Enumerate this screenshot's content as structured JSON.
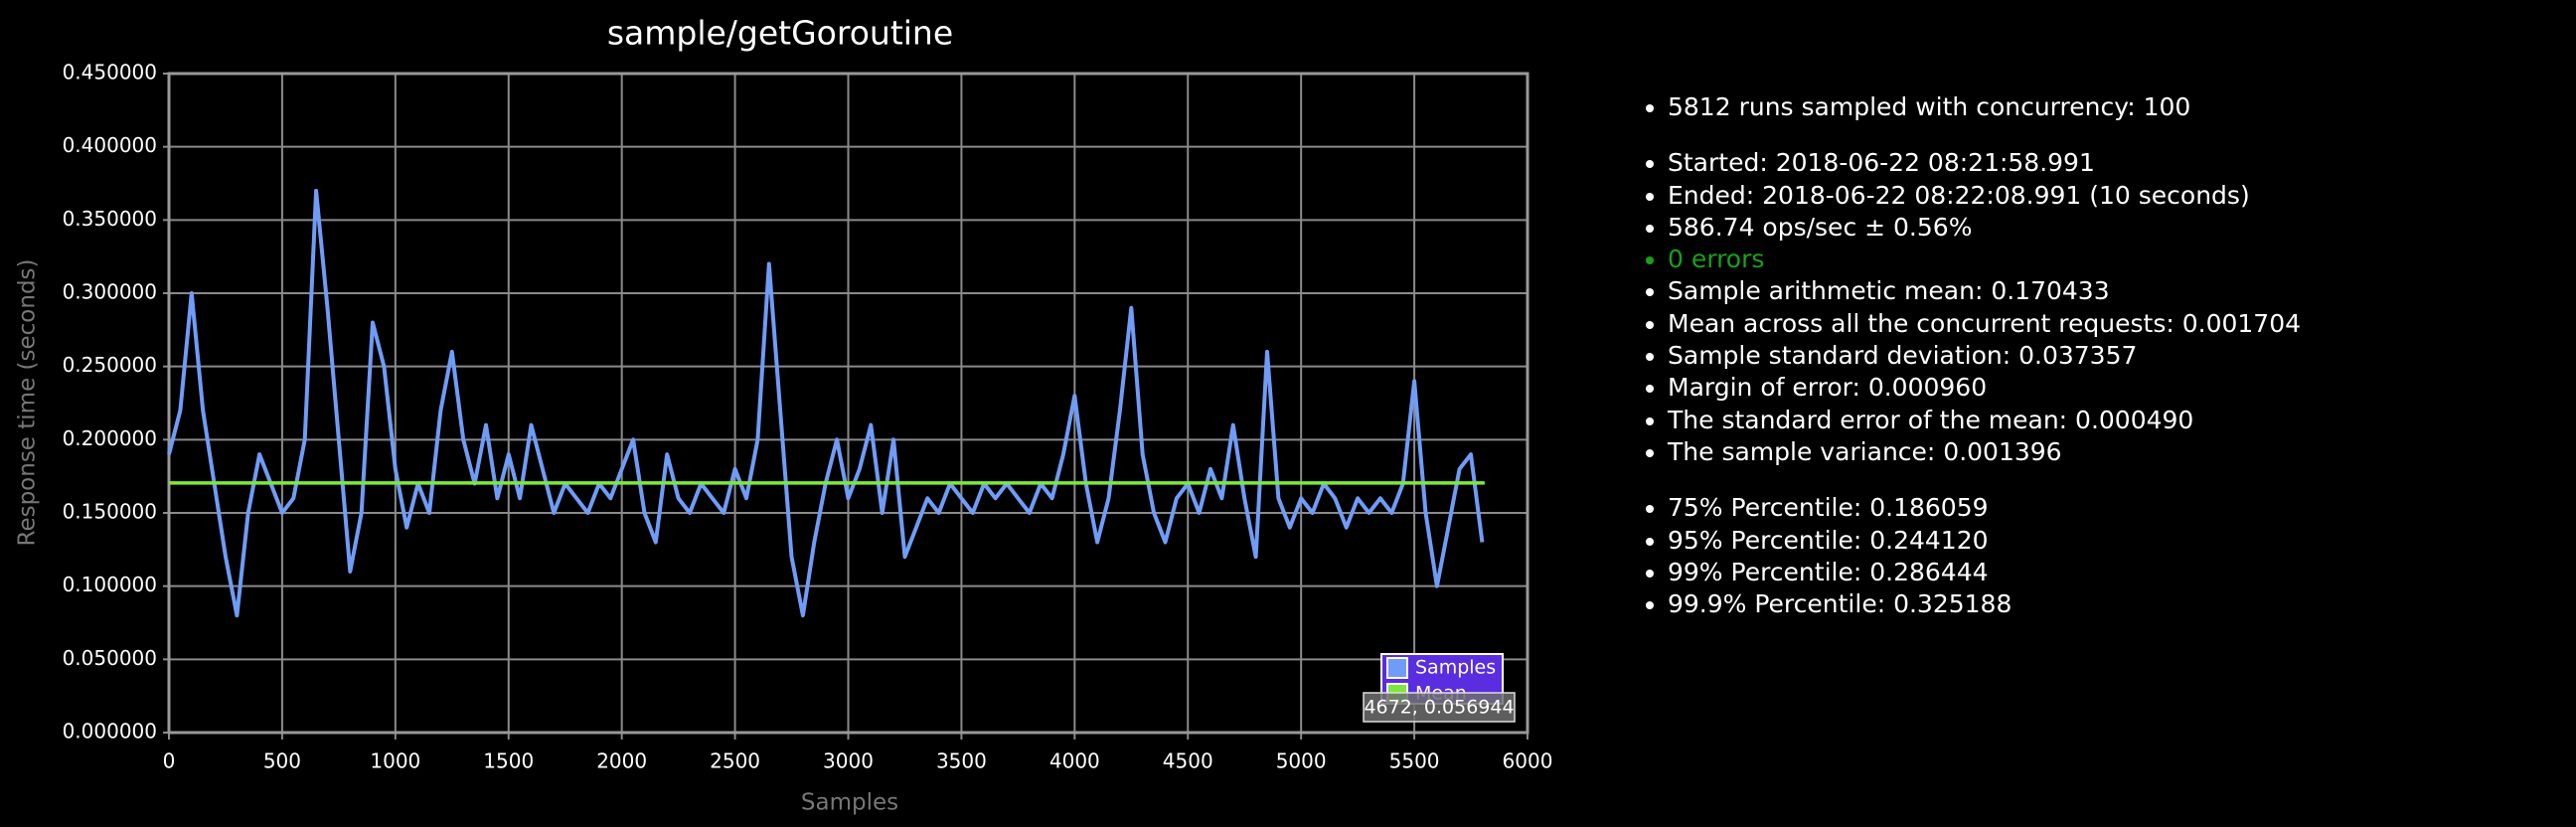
{
  "chart_data": {
    "type": "line",
    "title": "sample/getGoroutine",
    "x_label": "Samples",
    "y_label": "Response time (seconds)",
    "xlim": [
      0,
      6000
    ],
    "xticks": [
      0,
      500,
      1000,
      1500,
      2000,
      2500,
      3000,
      3500,
      4000,
      4500,
      5000,
      5500,
      6000
    ],
    "ylim": [
      0,
      0.45
    ],
    "yticks": [
      {
        "value": 0,
        "label": "0.000000"
      },
      {
        "value": 0.05,
        "label": "0.050000"
      },
      {
        "value": 0.1,
        "label": "0.100000"
      },
      {
        "value": 0.15,
        "label": "0.150000"
      },
      {
        "value": 0.2,
        "label": "0.200000"
      },
      {
        "value": 0.25,
        "label": "0.250000"
      },
      {
        "value": 0.3,
        "label": "0.300000"
      },
      {
        "value": 0.35,
        "label": "0.350000"
      },
      {
        "value": 0.4,
        "label": "0.400000"
      },
      {
        "value": 0.45,
        "label": "0.450000"
      }
    ],
    "grid": true,
    "legend": "lower right",
    "tooltip": "4672, 0.056944",
    "series": [
      {
        "name": "Samples",
        "color": "#6f9cf7",
        "x": [
          0,
          50,
          100,
          150,
          200,
          250,
          300,
          350,
          400,
          450,
          500,
          550,
          600,
          650,
          700,
          750,
          800,
          850,
          900,
          950,
          1000,
          1050,
          1100,
          1150,
          1200,
          1250,
          1300,
          1350,
          1400,
          1450,
          1500,
          1550,
          1600,
          1650,
          1700,
          1750,
          1800,
          1850,
          1900,
          1950,
          2000,
          2050,
          2100,
          2150,
          2200,
          2250,
          2300,
          2350,
          2400,
          2450,
          2500,
          2550,
          2600,
          2650,
          2700,
          2750,
          2800,
          2850,
          2900,
          2950,
          3000,
          3050,
          3100,
          3150,
          3200,
          3250,
          3300,
          3350,
          3400,
          3450,
          3500,
          3550,
          3600,
          3650,
          3700,
          3750,
          3800,
          3850,
          3900,
          3950,
          4000,
          4050,
          4100,
          4150,
          4200,
          4250,
          4300,
          4350,
          4400,
          4450,
          4500,
          4550,
          4600,
          4650,
          4700,
          4750,
          4800,
          4850,
          4900,
          4950,
          5000,
          5050,
          5100,
          5150,
          5200,
          5250,
          5300,
          5350,
          5400,
          5450,
          5500,
          5550,
          5600,
          5650,
          5700,
          5750,
          5800
        ],
        "values": [
          0.19,
          0.22,
          0.3,
          0.22,
          0.17,
          0.12,
          0.08,
          0.15,
          0.19,
          0.17,
          0.15,
          0.16,
          0.2,
          0.37,
          0.29,
          0.2,
          0.11,
          0.15,
          0.28,
          0.25,
          0.18,
          0.14,
          0.17,
          0.15,
          0.22,
          0.26,
          0.2,
          0.17,
          0.21,
          0.16,
          0.19,
          0.16,
          0.21,
          0.18,
          0.15,
          0.17,
          0.16,
          0.15,
          0.17,
          0.16,
          0.18,
          0.2,
          0.15,
          0.13,
          0.19,
          0.16,
          0.15,
          0.17,
          0.16,
          0.15,
          0.18,
          0.16,
          0.2,
          0.32,
          0.22,
          0.12,
          0.08,
          0.13,
          0.17,
          0.2,
          0.16,
          0.18,
          0.21,
          0.15,
          0.2,
          0.12,
          0.14,
          0.16,
          0.15,
          0.17,
          0.16,
          0.15,
          0.17,
          0.16,
          0.17,
          0.16,
          0.15,
          0.17,
          0.16,
          0.19,
          0.23,
          0.17,
          0.13,
          0.16,
          0.22,
          0.29,
          0.19,
          0.15,
          0.13,
          0.16,
          0.17,
          0.15,
          0.18,
          0.16,
          0.21,
          0.16,
          0.12,
          0.26,
          0.16,
          0.14,
          0.16,
          0.15,
          0.17,
          0.16,
          0.14,
          0.16,
          0.15,
          0.16,
          0.15,
          0.17,
          0.24,
          0.15,
          0.1,
          0.14,
          0.18,
          0.19,
          0.13
        ]
      },
      {
        "name": "Mean",
        "color": "#7de83a",
        "x": [
          0,
          5811
        ],
        "values": [
          0.170433,
          0.170433
        ]
      }
    ]
  },
  "summary": [
    [
      {
        "text": "5812 runs sampled with concurrency: 100"
      }
    ],
    [
      {
        "text": "Started: 2018-06-22 08:21:58.991"
      },
      {
        "text": "Ended: 2018-06-22 08:22:08.991 (10 seconds)"
      },
      {
        "text": "586.74 ops/sec ± 0.56%"
      },
      {
        "text": "0 errors",
        "color": "#1aa01a"
      },
      {
        "text": "Sample arithmetic mean: 0.170433"
      },
      {
        "text": "Mean across all the concurrent requests: 0.001704"
      },
      {
        "text": "Sample standard deviation: 0.037357"
      },
      {
        "text": "Margin of error: 0.000960"
      },
      {
        "text": "The standard error of the mean: 0.000490"
      },
      {
        "text": "The sample variance: 0.001396"
      }
    ],
    [
      {
        "text": "75% Percentile: 0.186059"
      },
      {
        "text": "95% Percentile: 0.244120"
      },
      {
        "text": "99% Percentile: 0.286444"
      },
      {
        "text": "99.9% Percentile: 0.325188"
      }
    ]
  ]
}
